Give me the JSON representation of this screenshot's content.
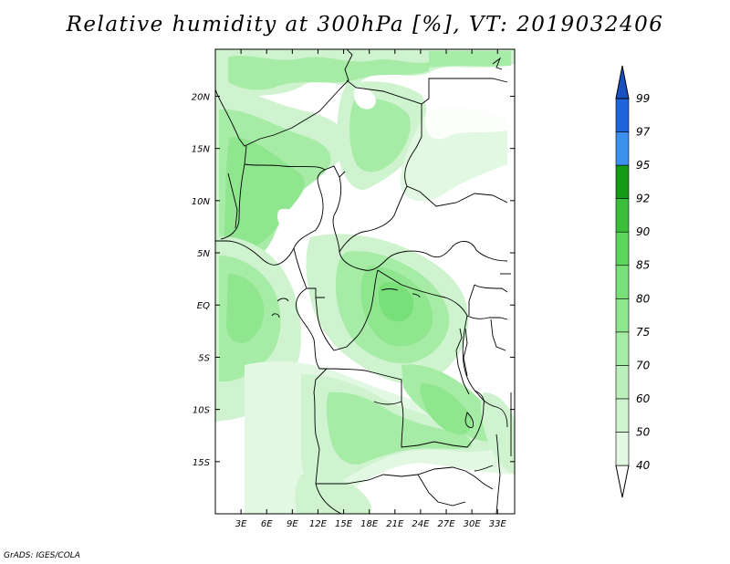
{
  "title": "Relative humidity at 300hPa [%], VT: 2019032406",
  "credit": "GrADS: IGES/COLA",
  "map": {
    "lat_ticks": [
      "20N",
      "15N",
      "10N",
      "5N",
      "EQ",
      "5S",
      "10S",
      "15S"
    ],
    "lon_ticks": [
      "3E",
      "6E",
      "9E",
      "12E",
      "15E",
      "18E",
      "21E",
      "24E",
      "27E",
      "30E",
      "33E"
    ],
    "lat_range": [
      -20,
      24.5
    ],
    "lon_range": [
      0,
      35
    ]
  },
  "colorbar": {
    "levels": [
      "40",
      "50",
      "60",
      "70",
      "75",
      "80",
      "85",
      "90",
      "92",
      "95",
      "97",
      "99"
    ],
    "colors": [
      "#f5fcf5",
      "#e2f8e2",
      "#cef3ce",
      "#bbefbb",
      "#a6eba6",
      "#8fe68f",
      "#79e079",
      "#5cd65c",
      "#3bbf3b",
      "#159a15",
      "#3a8fef",
      "#1e64dc",
      "#1a50c0"
    ],
    "under_color": "#ffffff"
  }
}
